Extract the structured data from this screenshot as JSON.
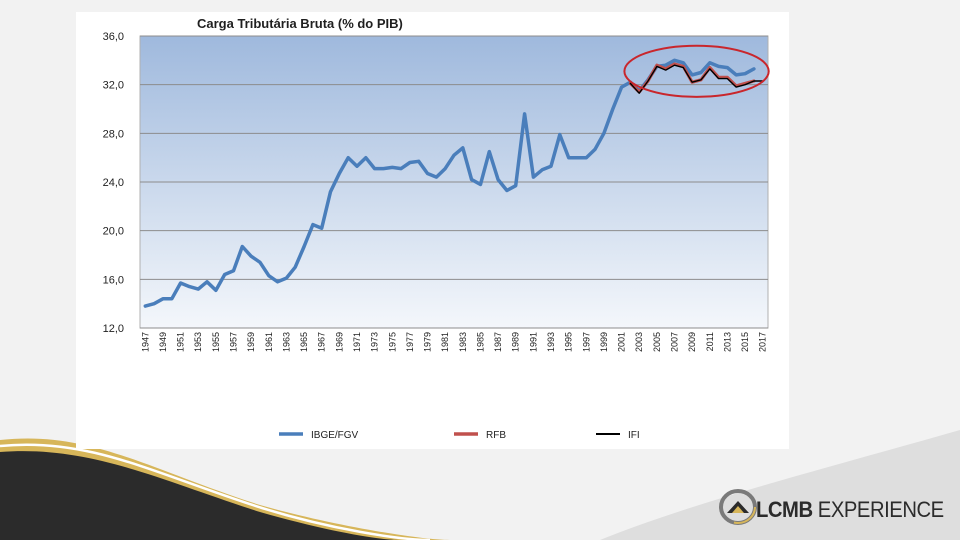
{
  "chart_data": {
    "type": "line",
    "title": "Carga Tributária Bruta (% do PIB)",
    "xlabel": "",
    "ylabel": "",
    "ylim": [
      12.0,
      36.0
    ],
    "yticks": [
      "12,0",
      "16,0",
      "20,0",
      "24,0",
      "28,0",
      "32,0",
      "36,0"
    ],
    "xticks": [
      "1947",
      "1949",
      "1951",
      "1953",
      "1955",
      "1957",
      "1959",
      "1961",
      "1963",
      "1965",
      "1967",
      "1969",
      "1971",
      "1973",
      "1975",
      "1977",
      "1979",
      "1981",
      "1983",
      "1985",
      "1987",
      "1989",
      "1991",
      "1993",
      "1995",
      "1997",
      "1999",
      "2001",
      "2003",
      "2005",
      "2007",
      "2009",
      "2011",
      "2013",
      "2015",
      "2017"
    ],
    "grid": true,
    "legend_position": "bottom",
    "series": [
      {
        "name": "IBGE/FGV",
        "color": "#4a7ebb",
        "x": [
          1947,
          1948,
          1949,
          1950,
          1951,
          1952,
          1953,
          1954,
          1955,
          1956,
          1957,
          1958,
          1959,
          1960,
          1961,
          1962,
          1963,
          1964,
          1965,
          1966,
          1967,
          1968,
          1969,
          1970,
          1971,
          1972,
          1973,
          1974,
          1975,
          1976,
          1977,
          1978,
          1979,
          1980,
          1981,
          1982,
          1983,
          1984,
          1985,
          1986,
          1987,
          1988,
          1989,
          1990,
          1991,
          1992,
          1993,
          1994,
          1995,
          1996,
          1997,
          1998,
          1999,
          2000,
          2001,
          2002,
          2003,
          2004,
          2005,
          2006,
          2007,
          2008,
          2009,
          2010,
          2011,
          2012,
          2013,
          2014,
          2015,
          2016
        ],
        "values": [
          13.8,
          14.0,
          14.4,
          14.4,
          15.7,
          15.4,
          15.2,
          15.8,
          15.1,
          16.4,
          16.7,
          18.7,
          17.9,
          17.4,
          16.3,
          15.8,
          16.1,
          17.0,
          18.7,
          20.5,
          20.2,
          23.2,
          24.7,
          26.0,
          25.3,
          26.0,
          25.1,
          25.1,
          25.2,
          25.1,
          25.6,
          25.7,
          24.7,
          24.4,
          25.1,
          26.2,
          26.8,
          24.2,
          23.8,
          26.5,
          24.2,
          23.3,
          23.7,
          29.6,
          24.4,
          25.0,
          25.3,
          27.9,
          26.0,
          26.0,
          26.0,
          26.7,
          28.0,
          30.0,
          31.8,
          32.2,
          31.5,
          32.4,
          33.5,
          33.6,
          34.0,
          33.8,
          32.8,
          33.0,
          33.8,
          33.5,
          33.4,
          32.8,
          32.9,
          33.3
        ]
      },
      {
        "name": "RFB",
        "color": "#c0504d",
        "x": [
          2002,
          2003,
          2004,
          2005,
          2006,
          2007,
          2008,
          2009,
          2010,
          2011,
          2012,
          2013,
          2014,
          2015,
          2016
        ],
        "values": [
          32.1,
          31.4,
          32.3,
          33.6,
          33.3,
          33.7,
          33.5,
          32.2,
          32.4,
          33.4,
          32.6,
          32.6,
          31.9,
          32.1,
          32.3
        ]
      },
      {
        "name": "IFI",
        "color": "#000000",
        "x": [
          2002,
          2003,
          2004,
          2005,
          2006,
          2007,
          2008,
          2009,
          2010,
          2011,
          2012,
          2013,
          2014,
          2015,
          2016,
          2017
        ],
        "values": [
          32.1,
          31.3,
          32.3,
          33.5,
          33.2,
          33.6,
          33.4,
          32.2,
          32.4,
          33.3,
          32.5,
          32.5,
          31.8,
          32.0,
          32.3,
          32.3
        ]
      }
    ],
    "annotation": {
      "shape": "ellipse",
      "color": "#c9262c",
      "x_range": [
        2002,
        2017
      ],
      "y_range": [
        31.0,
        35.2
      ]
    }
  },
  "branding": {
    "logo_text_part1": "LCMB",
    "logo_text_part2": "EXPERIENCE",
    "colors": {
      "dark_band": "#2b2b2b",
      "gold_band": "#d7b65a"
    }
  }
}
